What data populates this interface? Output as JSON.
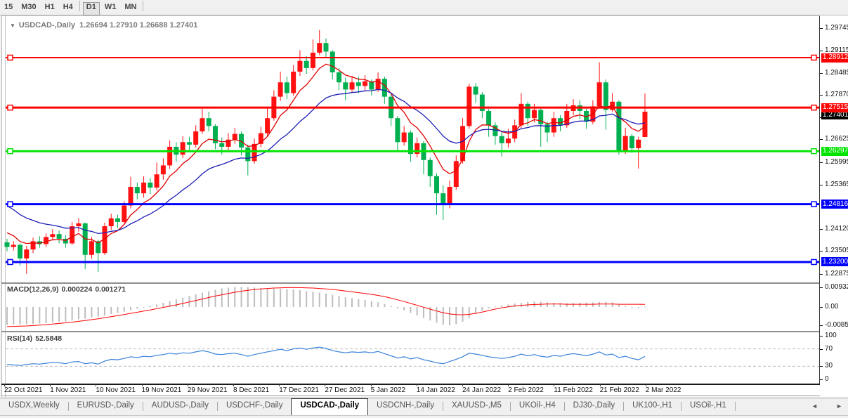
{
  "toolbar": {
    "buttons": [
      {
        "label": "15",
        "active": false
      },
      {
        "label": "M30",
        "active": false
      },
      {
        "label": "H1",
        "active": false
      },
      {
        "label": "H4",
        "active": false
      },
      {
        "label": "D1",
        "active": true
      },
      {
        "label": "W1",
        "active": false
      },
      {
        "label": "MN",
        "active": false
      }
    ]
  },
  "chart": {
    "symbol": "USDCAD-,Daily",
    "ohlc": "1.26694 1.27910 1.26688 1.27401",
    "dropdown_icon": "▼"
  },
  "indicators": {
    "macd": {
      "label": "MACD(12,26,9)",
      "value1": "0.000224",
      "value2": "0.001271",
      "axis": [
        {
          "text": "0.009322",
          "value": 0.009322
        },
        {
          "text": "0.00",
          "value": 0.0
        },
        {
          "text": "-0.00852",
          "value": -0.00852
        }
      ]
    },
    "rsi": {
      "label": "RSI(14)",
      "value": "52.5848",
      "axis": [
        {
          "text": "100",
          "value": 100
        },
        {
          "text": "70",
          "value": 70
        },
        {
          "text": "30",
          "value": 30
        },
        {
          "text": "0",
          "value": 0
        }
      ]
    }
  },
  "tabs": {
    "items": [
      "USDX,Weekly",
      "EURUSD-,Daily",
      "AUDUSD-,Daily",
      "USDCHF-,Daily",
      "USDCAD-,Daily",
      "USDCNH-,Daily",
      "XAUUSD-,M5",
      "UKOil-,H4",
      "DJ30-,Daily",
      "UK100-,H1",
      "USOil-,H1"
    ],
    "active": "USDCAD-,Daily",
    "left_arrow": "◄",
    "right_arrow": "►"
  },
  "chart_data": {
    "type": "candlestick",
    "symbol": "USDCAD-,Daily",
    "up_color": "#ff1111",
    "down_color": "#00b050",
    "x_labels": [
      "22 Oct 2021",
      "1 Nov 2021",
      "10 Nov 2021",
      "19 Nov 2021",
      "29 Nov 2021",
      "8 Dec 2021",
      "17 Dec 2021",
      "27 Dec 2021",
      "5 Jan 2022",
      "14 Jan 2022",
      "24 Jan 2022",
      "2 Feb 2022",
      "11 Feb 2022",
      "21 Feb 2022",
      "2 Mar 2022"
    ],
    "price_ticks": [
      1.29745,
      1.29115,
      1.28485,
      1.2787,
      1.2724,
      1.26625,
      1.25995,
      1.25365,
      1.2412,
      1.23505,
      1.22875
    ],
    "ylim": [
      1.2263,
      1.29972
    ],
    "current_price": {
      "value": 1.27401,
      "text": "1.27401",
      "color": "#000000"
    },
    "hlines": [
      {
        "price": 1.28912,
        "text": "1.28912",
        "color": "#ff0000",
        "width": 2
      },
      {
        "price": 1.27515,
        "text": "1.27515",
        "color": "#ff0000",
        "width": 3
      },
      {
        "price": 1.26297,
        "text": "1.26297",
        "color": "#00e400",
        "width": 3
      },
      {
        "price": 1.24816,
        "text": "1.24816",
        "color": "#0000ff",
        "width": 3
      },
      {
        "price": 1.232,
        "text": "1.23200",
        "color": "#0000ff",
        "width": 3
      }
    ],
    "moving_averages": [
      {
        "name": "ma-fast",
        "color": "#e00000",
        "alpha": 0.25,
        "seed": 1.2415
      },
      {
        "name": "ma-slow",
        "color": "#1c1cb4",
        "alpha": 0.1,
        "seed": 1.249
      }
    ],
    "candles": {
      "open": [
        1.2375,
        1.2362,
        1.2368,
        1.233,
        1.2355,
        1.2378,
        1.237,
        1.239,
        1.2398,
        1.2385,
        1.2372,
        1.242,
        1.2428,
        1.234,
        1.2378,
        1.2345,
        1.242,
        1.2442,
        1.2432,
        1.2478,
        1.253,
        1.2512,
        1.2542,
        1.2528,
        1.2565,
        1.259,
        1.2642,
        1.262,
        1.2655,
        1.2648,
        1.2685,
        1.2722,
        1.27,
        1.2652,
        1.2642,
        1.2662,
        1.2678,
        1.264,
        1.2602,
        1.265,
        1.268,
        1.2722,
        1.2782,
        1.2822,
        1.2792,
        1.2852,
        1.2882,
        1.2862,
        1.2905,
        1.2932,
        1.2908,
        1.285,
        1.2822,
        1.2802,
        1.2822,
        1.2812,
        1.2825,
        1.2802,
        1.2832,
        1.2782,
        1.2722,
        1.2655,
        1.2682,
        1.2622,
        1.2652,
        1.2605,
        1.256,
        1.2512,
        1.2482,
        1.253,
        1.2602,
        1.27,
        1.281,
        1.2788,
        1.2742,
        1.2702,
        1.2672,
        1.2652,
        1.2665,
        1.2702,
        1.2762,
        1.2722,
        1.2745,
        1.2705,
        1.2682,
        1.2722,
        1.2702,
        1.2742,
        1.2758,
        1.2742,
        1.2712,
        1.2755,
        1.2822,
        1.2745,
        1.2768,
        1.2628,
        1.2672,
        1.2638,
        1.26694
      ],
      "high": [
        1.2385,
        1.2378,
        1.2372,
        1.2365,
        1.2388,
        1.2392,
        1.24,
        1.2412,
        1.2408,
        1.2395,
        1.2432,
        1.2442,
        1.243,
        1.239,
        1.2382,
        1.243,
        1.2455,
        1.2452,
        1.249,
        1.2558,
        1.2542,
        1.256,
        1.2555,
        1.2598,
        1.261,
        1.266,
        1.2655,
        1.2672,
        1.267,
        1.2702,
        1.2748,
        1.274,
        1.2705,
        1.2668,
        1.268,
        1.2695,
        1.2685,
        1.2648,
        1.2665,
        1.2698,
        1.2752,
        1.28,
        1.2852,
        1.2838,
        1.287,
        1.2912,
        1.2895,
        1.2942,
        1.2968,
        1.2945,
        1.2912,
        1.2862,
        1.2835,
        1.284,
        1.2838,
        1.2842,
        1.283,
        1.285,
        1.2838,
        1.2788,
        1.2728,
        1.27,
        1.2688,
        1.2668,
        1.2658,
        1.2612,
        1.2568,
        1.2535,
        1.2548,
        1.2618,
        1.2722,
        1.2818,
        1.282,
        1.2795,
        1.2748,
        1.271,
        1.2685,
        1.2692,
        1.2718,
        1.2792,
        1.2768,
        1.2762,
        1.275,
        1.2712,
        1.274,
        1.273,
        1.2762,
        1.2775,
        1.2772,
        1.2748,
        1.2772,
        1.2878,
        1.283,
        1.2792,
        1.2772,
        1.2695,
        1.2678,
        1.267,
        1.2791
      ],
      "low": [
        1.235,
        1.2352,
        1.231,
        1.2287,
        1.2345,
        1.236,
        1.2362,
        1.238,
        1.2372,
        1.236,
        1.2368,
        1.2405,
        1.23,
        1.233,
        1.2292,
        1.234,
        1.241,
        1.2415,
        1.2428,
        1.247,
        1.2495,
        1.25,
        1.251,
        1.252,
        1.255,
        1.258,
        1.26,
        1.261,
        1.263,
        1.264,
        1.2678,
        1.2685,
        1.2635,
        1.262,
        1.263,
        1.265,
        1.2618,
        1.2562,
        1.2595,
        1.264,
        1.2672,
        1.2715,
        1.277,
        1.2775,
        1.2785,
        1.284,
        1.2845,
        1.2855,
        1.2898,
        1.289,
        1.283,
        1.28,
        1.2772,
        1.2795,
        1.2792,
        1.28,
        1.2785,
        1.2795,
        1.2762,
        1.27,
        1.2628,
        1.2645,
        1.26,
        1.2612,
        1.2565,
        1.253,
        1.2452,
        1.2438,
        1.247,
        1.2522,
        1.2595,
        1.2692,
        1.2765,
        1.2722,
        1.267,
        1.2648,
        1.2615,
        1.264,
        1.2655,
        1.2695,
        1.27,
        1.271,
        1.2642,
        1.2655,
        1.267,
        1.2685,
        1.2695,
        1.273,
        1.272,
        1.2692,
        1.2705,
        1.2748,
        1.269,
        1.274,
        1.262,
        1.2622,
        1.2625,
        1.2581,
        1.26688
      ],
      "close": [
        1.2362,
        1.2368,
        1.233,
        1.2355,
        1.2378,
        1.237,
        1.239,
        1.2398,
        1.2385,
        1.2372,
        1.242,
        1.2428,
        1.234,
        1.2378,
        1.2345,
        1.242,
        1.2442,
        1.2432,
        1.2478,
        1.253,
        1.2512,
        1.2542,
        1.2528,
        1.2565,
        1.259,
        1.2642,
        1.262,
        1.2655,
        1.2648,
        1.2685,
        1.2722,
        1.27,
        1.2652,
        1.2642,
        1.2662,
        1.2678,
        1.264,
        1.2602,
        1.265,
        1.268,
        1.2722,
        1.2782,
        1.2822,
        1.2792,
        1.2852,
        1.2882,
        1.2862,
        1.2905,
        1.2932,
        1.2908,
        1.285,
        1.2822,
        1.2802,
        1.2822,
        1.2812,
        1.2825,
        1.2802,
        1.2832,
        1.2782,
        1.2722,
        1.2655,
        1.2682,
        1.2622,
        1.2652,
        1.2605,
        1.256,
        1.2512,
        1.2482,
        1.253,
        1.2602,
        1.27,
        1.281,
        1.2788,
        1.2742,
        1.2702,
        1.2672,
        1.2652,
        1.2665,
        1.2702,
        1.2762,
        1.2722,
        1.2745,
        1.2705,
        1.2682,
        1.2722,
        1.2702,
        1.2742,
        1.2758,
        1.2742,
        1.2712,
        1.2755,
        1.2822,
        1.2745,
        1.2768,
        1.2628,
        1.2672,
        1.2638,
        1.2662,
        1.27401
      ]
    },
    "macd": {
      "hist_color": "#bdbdbd",
      "signal_color": "#ff0000",
      "hist": [
        -0.0085,
        -0.0084,
        -0.0083,
        -0.0082,
        -0.008,
        -0.0078,
        -0.0076,
        -0.0073,
        -0.007,
        -0.0068,
        -0.0064,
        -0.0058,
        -0.0055,
        -0.005,
        -0.0046,
        -0.004,
        -0.0033,
        -0.0028,
        -0.0022,
        -0.0015,
        -0.0008,
        -0.0002,
        0.0005,
        0.0012,
        0.002,
        0.0028,
        0.0036,
        0.0044,
        0.0052,
        0.006,
        0.0068,
        0.0075,
        0.0082,
        0.0088,
        0.0092,
        0.0095,
        0.0095,
        0.0094,
        0.0092,
        0.009,
        0.0088,
        0.0087,
        0.0086,
        0.0085,
        0.0083,
        0.008,
        0.0076,
        0.0072,
        0.0068,
        0.0064,
        0.0058,
        0.0052,
        0.0046,
        0.0042,
        0.0038,
        0.0034,
        0.0028,
        0.0022,
        0.0014,
        0.0004,
        -0.0006,
        -0.0016,
        -0.0028,
        -0.004,
        -0.0052,
        -0.0064,
        -0.0075,
        -0.0084,
        -0.0087,
        -0.0082,
        -0.007,
        -0.0052,
        -0.0034,
        -0.0018,
        -0.0006,
        0.0002,
        0.0008,
        0.0012,
        0.0016,
        0.002,
        0.0024,
        0.0026,
        0.0025,
        0.0022,
        0.002,
        0.0019,
        0.0018,
        0.0019,
        0.002,
        0.0021,
        0.0022,
        0.0024,
        0.0025,
        0.0022,
        0.001,
        0.0005,
        -0.0003,
        -0.0005,
        0.000224
      ],
      "signal": [
        -0.0093,
        -0.0092,
        -0.0091,
        -0.009,
        -0.0088,
        -0.0086,
        -0.0084,
        -0.0081,
        -0.0078,
        -0.0075,
        -0.0072,
        -0.0068,
        -0.0064,
        -0.006,
        -0.0056,
        -0.0051,
        -0.0046,
        -0.0041,
        -0.0036,
        -0.003,
        -0.0025,
        -0.0019,
        -0.0014,
        -0.0008,
        -0.0002,
        0.0004,
        0.001,
        0.0017,
        0.0024,
        0.0031,
        0.0038,
        0.0045,
        0.0052,
        0.0058,
        0.0064,
        0.007,
        0.0075,
        0.0079,
        0.0083,
        0.0086,
        0.0088,
        0.009,
        0.0091,
        0.0092,
        0.0092,
        0.0092,
        0.0091,
        0.009,
        0.0088,
        0.0086,
        0.0083,
        0.008,
        0.0076,
        0.0072,
        0.0068,
        0.0064,
        0.006,
        0.0055,
        0.0049,
        0.0042,
        0.0034,
        0.0026,
        0.0017,
        0.0008,
        -0.0001,
        -0.001,
        -0.0019,
        -0.0027,
        -0.0033,
        -0.0036,
        -0.0037,
        -0.0035,
        -0.003,
        -0.0024,
        -0.0017,
        -0.001,
        -0.0004,
        0.0001,
        0.0005,
        0.0008,
        0.001,
        0.0012,
        0.0013,
        0.0014,
        0.0014,
        0.0014,
        0.0013,
        0.0013,
        0.0013,
        0.0013,
        0.0013,
        0.0014,
        0.0014,
        0.0014,
        0.0013,
        0.0013,
        0.0013,
        0.0013,
        0.001271
      ]
    },
    "rsi": {
      "color": "#3b83d9",
      "levels": [
        70,
        30
      ],
      "values": [
        34,
        33,
        32,
        34,
        36,
        35,
        37,
        39,
        38,
        36,
        40,
        41,
        36,
        38,
        35,
        42,
        46,
        45,
        48,
        52,
        50,
        53,
        52,
        55,
        57,
        60,
        58,
        61,
        60,
        63,
        66,
        63,
        58,
        57,
        59,
        60,
        57,
        53,
        57,
        60,
        63,
        66,
        69,
        66,
        70,
        72,
        69,
        72,
        74,
        71,
        66,
        63,
        61,
        63,
        62,
        63,
        61,
        64,
        59,
        54,
        49,
        52,
        47,
        50,
        45,
        42,
        38,
        36,
        41,
        46,
        52,
        60,
        58,
        55,
        52,
        50,
        48,
        50,
        53,
        58,
        54,
        57,
        53,
        51,
        55,
        53,
        57,
        59,
        57,
        54,
        58,
        63,
        56,
        58,
        50,
        53,
        48,
        45,
        52.5848
      ]
    }
  }
}
